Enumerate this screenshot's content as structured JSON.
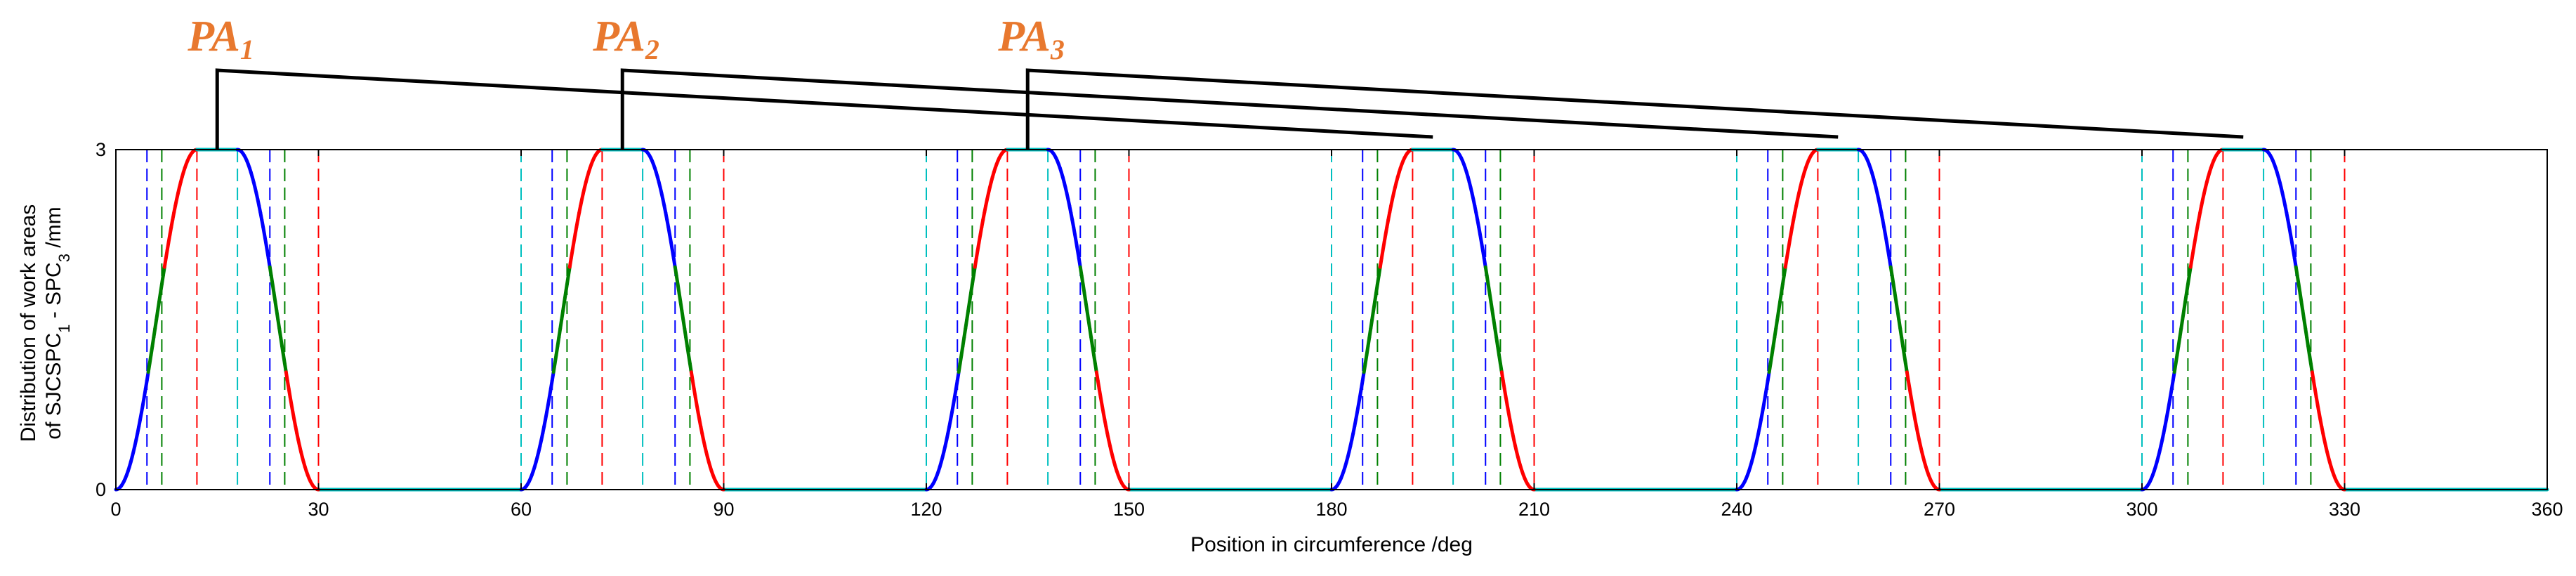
{
  "chart_data": {
    "type": "line",
    "title": "",
    "xlabel": "Position in circumference /deg",
    "ylabel_line1": "Distribution of work areas",
    "ylabel_line2_prefix": "of SJCSPC",
    "ylabel_line2_sub1": "1",
    "ylabel_line2_mid": " - SPC",
    "ylabel_line2_sub2": "3",
    "ylabel_line2_suffix": " /mm",
    "xlim": [
      0,
      360
    ],
    "ylim": [
      0,
      3
    ],
    "xticks": [
      "0",
      "30",
      "60",
      "90",
      "120",
      "150",
      "180",
      "210",
      "240",
      "270",
      "300",
      "330",
      "360"
    ],
    "yticks": [
      "0",
      "3"
    ],
    "pulse_starts": [
      0,
      60,
      120,
      180,
      240,
      300
    ],
    "pulse_shape": {
      "rise": [
        0,
        12
      ],
      "flat": [
        12,
        18
      ],
      "fall": [
        18,
        30
      ],
      "height": 3
    },
    "segments": [
      {
        "name": "SPC1",
        "color": "#0000FF",
        "y_range": [
          0,
          1
        ]
      },
      {
        "name": "SPC2",
        "color": "#008000",
        "y_range": [
          1,
          2
        ]
      },
      {
        "name": "SPC3",
        "color": "#FF0000",
        "y_range": [
          2,
          3
        ]
      }
    ],
    "baseline_color": "#00BFBF",
    "dashed_marker_offsets": [
      {
        "offset": 0,
        "color": "#00BFBF"
      },
      {
        "offset": 4.6,
        "color": "#0000FF"
      },
      {
        "offset": 6.8,
        "color": "#008000"
      },
      {
        "offset": 12,
        "color": "#FF0000"
      },
      {
        "offset": 18,
        "color": "#00BFBF"
      },
      {
        "offset": 22.8,
        "color": "#0000FF"
      },
      {
        "offset": 25,
        "color": "#008000"
      },
      {
        "offset": 30,
        "color": "#FF0000"
      }
    ],
    "annotations": [
      {
        "label": "PA",
        "sub": "1",
        "stem_x": 15,
        "end_x": 195
      },
      {
        "label": "PA",
        "sub": "2",
        "stem_x": 75,
        "end_x": 255
      },
      {
        "label": "PA",
        "sub": "3",
        "stem_x": 135,
        "end_x": 315
      }
    ],
    "colors": {
      "annotation": "#E8782E",
      "bracket": "#000000"
    }
  }
}
